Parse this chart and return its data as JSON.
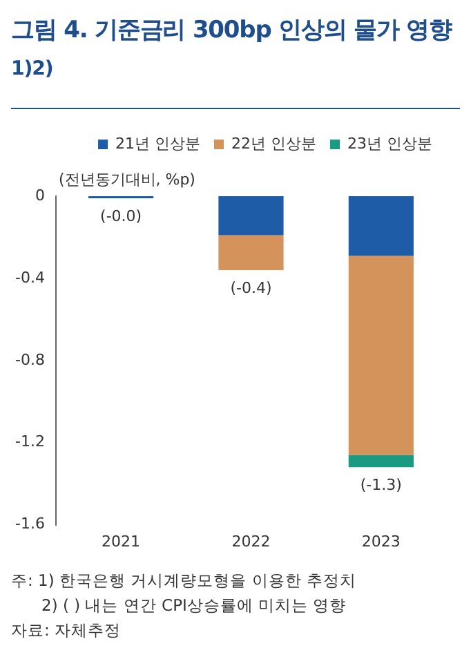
{
  "chart_data": {
    "type": "bar",
    "title": "그림 4. 기준금리 300bp 인상의 물가 영향$^{1)2)}$",
    "ylabel": "(전년동기대비, %p)",
    "categories": [
      "2021",
      "2022",
      "2023"
    ],
    "stacked": true,
    "series": [
      {
        "name": "21년 인상분",
        "color": "#1f5ca8",
        "values": [
          -0.01,
          -0.19,
          -0.29
        ]
      },
      {
        "name": "22년 인상분",
        "color": "#d4935a",
        "values": [
          0,
          -0.17,
          -0.97
        ]
      },
      {
        "name": "23년 인상분",
        "color": "#1a9a80",
        "values": [
          0,
          0,
          -0.06
        ]
      }
    ],
    "totals": [
      "(-0.0)",
      "(-0.4)",
      "(-1.3)"
    ],
    "ylim": [
      -1.6,
      0
    ],
    "yticks": [
      0,
      -0.4,
      -0.8,
      -1.2,
      -1.6
    ],
    "grid": false,
    "legend": "top",
    "annotations": [
      "주: 1) 한국은행 거시계량모형을 이용한 추정치",
      "2) ( ) 내는 연간 CPI상승률에 미치는 영향",
      "자료: 자체추정"
    ]
  }
}
